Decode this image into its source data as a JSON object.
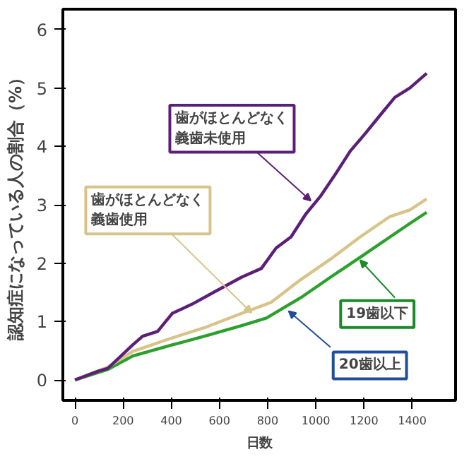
{
  "chart_data": {
    "type": "line",
    "xlabel": "日数",
    "ylabel": "認知症になっている人の割合（%）",
    "xlim": [
      -50,
      1580
    ],
    "ylim": [
      -0.35,
      6.35
    ],
    "xticks": [
      0,
      200,
      400,
      600,
      800,
      1000,
      1200,
      1400
    ],
    "yticks": [
      0,
      1,
      2,
      3,
      4,
      5,
      6
    ],
    "grid": false,
    "marker": "none",
    "line_style": "solid",
    "series": [
      {
        "color": "#5b1f78",
        "x": [
          0,
          97,
          137,
          240,
          281,
          343,
          404,
          487,
          589,
          692,
          774,
          835,
          897,
          958,
          1020,
          1082,
          1143,
          1205,
          1266,
          1328,
          1390,
          1460
        ],
        "values": [
          0,
          0.15,
          0.2,
          0.6,
          0.75,
          0.83,
          1.14,
          1.3,
          1.53,
          1.76,
          1.91,
          2.26,
          2.45,
          2.84,
          3.15,
          3.53,
          3.92,
          4.22,
          4.53,
          4.84,
          5.0,
          5.25
        ]
      },
      {
        "color": "#d8c48a",
        "x": [
          0,
          137,
          240,
          404,
          548,
          692,
          815,
          938,
          1061,
          1184,
          1308,
          1390,
          1460
        ],
        "values": [
          0,
          0.22,
          0.49,
          0.72,
          0.91,
          1.14,
          1.33,
          1.72,
          2.07,
          2.45,
          2.8,
          2.91,
          3.1
        ]
      },
      {
        "color": "#2ca02c",
        "x": [
          0,
          137,
          240,
          404,
          548,
          692,
          795,
          938,
          1061,
          1184,
          1308,
          1390,
          1460
        ],
        "values": [
          0,
          0.18,
          0.41,
          0.6,
          0.76,
          0.93,
          1.06,
          1.41,
          1.76,
          2.1,
          2.45,
          2.68,
          2.87
        ]
      }
    ],
    "annotations": [
      {
        "text": "歯がほとんどなく義歯未使用",
        "x": 979,
        "y": 3.07
      },
      {
        "text": "歯がほとんどなく義歯使用",
        "x": 733,
        "y": 1.15
      },
      {
        "text": "19歯以下",
        "x": 1184,
        "y": 2.05
      },
      {
        "text": "20歯以上",
        "x": 887,
        "y": 1.18
      }
    ]
  }
}
